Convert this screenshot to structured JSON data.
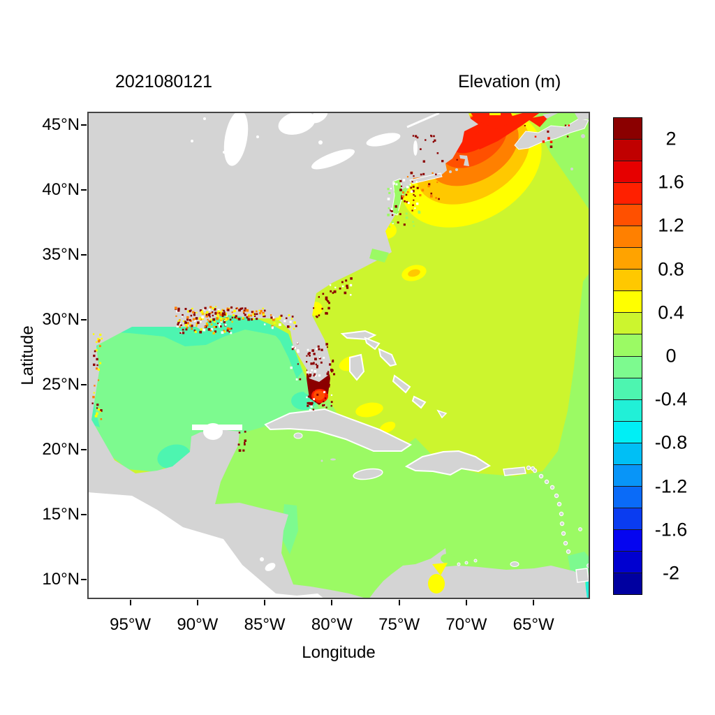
{
  "page": {
    "background": "#ffffff"
  },
  "chart_data": {
    "type": "heatmap",
    "title_left": "2021080121",
    "colorbar_title": "Elevation (m)",
    "xlabel": "Longitude",
    "ylabel": "Latitude",
    "x_ticks": [
      "95°W",
      "90°W",
      "85°W",
      "80°W",
      "75°W",
      "70°W",
      "65°W"
    ],
    "x_tick_values_deg_west": [
      95,
      90,
      85,
      80,
      75,
      70,
      65
    ],
    "y_ticks": [
      "45°N",
      "40°N",
      "35°N",
      "30°N",
      "25°N",
      "20°N",
      "15°N",
      "10°N"
    ],
    "y_tick_values_deg_north": [
      45,
      40,
      35,
      30,
      25,
      20,
      15,
      10
    ],
    "lon_range_deg_west": [
      98.2,
      60.8
    ],
    "lat_range_deg_north": [
      8.5,
      46.0
    ],
    "grid": false,
    "legend_position": "right",
    "colorbar": {
      "tick_labels": [
        "2",
        "1.6",
        "1.2",
        "0.8",
        "0.4",
        "0",
        "-0.4",
        "-0.8",
        "-1.2",
        "-1.6",
        "-2"
      ],
      "tick_values": [
        2,
        1.6,
        1.2,
        0.8,
        0.4,
        0,
        -0.4,
        -0.8,
        -1.2,
        -1.6,
        -2
      ],
      "level_min": -2.2,
      "level_max": 2.2,
      "level_step": 0.2,
      "colors_top_to_bottom": [
        "#8b0000",
        "#c00000",
        "#e60000",
        "#ff2000",
        "#ff5000",
        "#ff8000",
        "#ffa300",
        "#ffc800",
        "#ffff00",
        "#ccf52e",
        "#9bfa64",
        "#7dfa8f",
        "#4df5b0",
        "#21f0d7",
        "#00eff5",
        "#00bff5",
        "#0895f8",
        "#0a6bf8",
        "#0a3cf0",
        "#0505f0",
        "#0000d0",
        "#0000a0"
      ]
    },
    "map_colors": {
      "land": "#d4d4d4",
      "no_data": "#ffffff"
    },
    "regions": [
      {
        "name": "Open Atlantic",
        "approx_value_m": 0.3
      },
      {
        "name": "Region northeast of Nova Scotia",
        "approx_value_m": 0.1
      },
      {
        "name": "Gulf of Maine outer band",
        "approx_value_m": 0.5
      },
      {
        "name": "Gulf of Maine middle bands",
        "approx_value_m": 0.9
      },
      {
        "name": "Gulf of Maine inner band",
        "approx_value_m": 1.3
      },
      {
        "name": "Bay of Fundy",
        "approx_value_m": 1.5
      },
      {
        "name": "Gulf of St Lawrence patch",
        "approx_value_m": 1.5
      },
      {
        "name": "Long Island / New Jersey coastal patches",
        "approx_value_m": 0.9
      },
      {
        "name": "Cape Hatteras offshore patch",
        "approx_value_m": 0.5
      },
      {
        "name": "Georgia / north Florida coastal patch",
        "approx_value_m": 0.5
      },
      {
        "name": "Florida east coast anomaly",
        "approx_value_m": 2.1
      },
      {
        "name": "Bahamas banks patches",
        "approx_value_m": 0.5
      },
      {
        "name": "Gulf of Mexico interior",
        "approx_value_m": -0.1
      },
      {
        "name": "Gulf of Mexico northern and western shelf",
        "approx_value_m": -0.3
      },
      {
        "name": "Louisiana / Mississippi coast speckles",
        "approx_value_m": 1.8
      },
      {
        "name": "Caribbean Sea",
        "approx_value_m": 0.1
      },
      {
        "name": "Nicaragua coastal band",
        "approx_value_m": -0.1
      },
      {
        "name": "Lake Maracaibo",
        "approx_value_m": 0.5
      },
      {
        "name": "Trinidad corner band",
        "approx_value_m": -0.2
      },
      {
        "name": "Land",
        "approx_value_m": null
      },
      {
        "name": "Pacific Ocean / Great Lakes (no data)",
        "approx_value_m": null
      }
    ]
  }
}
